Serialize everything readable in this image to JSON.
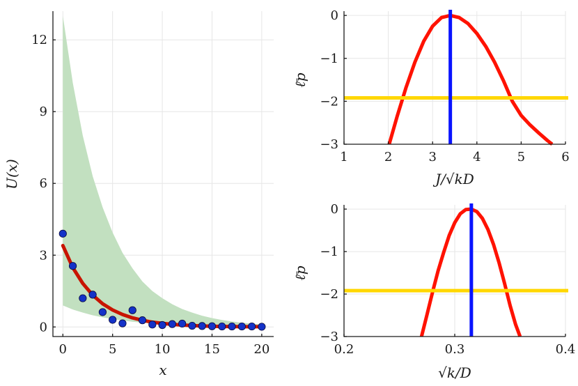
{
  "chart_data": [
    {
      "type": "scatter",
      "xlabel": "x",
      "ylabel": "U(x)",
      "xlim": [
        -1,
        21.2
      ],
      "ylim": [
        -0.4,
        13.2
      ],
      "xticks": [
        0,
        5,
        10,
        15,
        20
      ],
      "yticks": [
        0,
        3,
        6,
        9,
        12
      ],
      "grid": true,
      "points": {
        "x": [
          0,
          1,
          2,
          3,
          4,
          5,
          6,
          7,
          8,
          9,
          10,
          11,
          12,
          13,
          14,
          15,
          16,
          17,
          18,
          19,
          20
        ],
        "y": [
          3.9,
          2.55,
          1.2,
          1.35,
          0.62,
          0.3,
          0.15,
          0.7,
          0.28,
          0.1,
          0.08,
          0.12,
          0.14,
          0.05,
          0.04,
          0.03,
          0.02,
          0.02,
          0.02,
          0.02,
          0.01
        ],
        "color": "#1432c8"
      },
      "fit_line": {
        "x": [
          0,
          1,
          2,
          3,
          4,
          5,
          6,
          7,
          8,
          9,
          10,
          11,
          12,
          13,
          14,
          15,
          16,
          17,
          18,
          19,
          20
        ],
        "y": [
          3.4,
          2.48,
          1.82,
          1.33,
          0.97,
          0.71,
          0.52,
          0.38,
          0.28,
          0.2,
          0.15,
          0.11,
          0.08,
          0.06,
          0.04,
          0.03,
          0.02,
          0.02,
          0.01,
          0.01,
          0.01
        ],
        "color": "#c81400"
      },
      "band": {
        "x": [
          0,
          1,
          2,
          3,
          4,
          5,
          6,
          7,
          8,
          9,
          10,
          11,
          12,
          13,
          14,
          15,
          16,
          17,
          18,
          19,
          20
        ],
        "lower": [
          0.9,
          0.73,
          0.6,
          0.49,
          0.4,
          0.33,
          0.27,
          0.22,
          0.18,
          0.15,
          0.12,
          0.1,
          0.08,
          0.07,
          0.05,
          0.04,
          0.04,
          0.03,
          0.02,
          0.02,
          0.02
        ],
        "upper": [
          13.0,
          10.2,
          8.0,
          6.3,
          5.0,
          3.95,
          3.1,
          2.45,
          1.9,
          1.5,
          1.2,
          0.95,
          0.75,
          0.6,
          0.47,
          0.37,
          0.29,
          0.23,
          0.18,
          0.14,
          0.11
        ],
        "color": "#c2e0c0"
      }
    },
    {
      "type": "line",
      "xlabel": "J/√kD",
      "ylabel": "ℓ̄p",
      "xlim": [
        1,
        6
      ],
      "ylim": [
        -3,
        0.1
      ],
      "xticks": [
        1,
        2,
        3,
        4,
        5,
        6
      ],
      "yticks": [
        0,
        -1,
        -2,
        -3
      ],
      "ytick_labels": [
        "0",
        "−1",
        "−2",
        "−3"
      ],
      "grid": true,
      "series": [
        {
          "x": [
            2.02,
            2.2,
            2.4,
            2.6,
            2.8,
            3.0,
            3.2,
            3.4,
            3.6,
            3.8,
            4.0,
            4.2,
            4.4,
            4.6,
            4.8,
            5.0,
            5.2,
            5.4,
            5.6,
            5.7
          ],
          "y": [
            -3.0,
            -2.35,
            -1.68,
            -1.09,
            -0.6,
            -0.25,
            -0.05,
            0.0,
            -0.05,
            -0.19,
            -0.42,
            -0.72,
            -1.09,
            -1.52,
            -2.0,
            -2.33,
            -2.55,
            -2.74,
            -2.92,
            -3.0
          ],
          "color": "#ff1200"
        }
      ],
      "vline": {
        "x": 3.4,
        "color": "#0a14ff"
      },
      "hline": {
        "y": -1.92,
        "color": "#ffd700"
      }
    },
    {
      "type": "line",
      "xlabel": "√k/D",
      "ylabel": "ℓ̄p",
      "xlim": [
        0.2,
        0.4
      ],
      "ylim": [
        -3,
        0.1
      ],
      "xticks": [
        0.2,
        0.3,
        0.4
      ],
      "xtick_labels": [
        "0.2",
        "0.3",
        "0.4"
      ],
      "yticks": [
        0,
        -1,
        -2,
        -3
      ],
      "ytick_labels": [
        "0",
        "−1",
        "−2",
        "−3"
      ],
      "grid": true,
      "series": [
        {
          "x": [
            0.27,
            0.275,
            0.28,
            0.285,
            0.29,
            0.295,
            0.3,
            0.305,
            0.31,
            0.315,
            0.32,
            0.325,
            0.33,
            0.335,
            0.34,
            0.345,
            0.35,
            0.355,
            0.359
          ],
          "y": [
            -3.0,
            -2.48,
            -1.95,
            -1.45,
            -1.02,
            -0.62,
            -0.32,
            -0.11,
            -0.01,
            0.0,
            -0.06,
            -0.22,
            -0.48,
            -0.83,
            -1.26,
            -1.75,
            -2.27,
            -2.72,
            -3.0
          ],
          "color": "#ff1200"
        }
      ],
      "vline": {
        "x": 0.315,
        "color": "#0a14ff"
      },
      "hline": {
        "y": -1.92,
        "color": "#ffd700"
      }
    }
  ]
}
